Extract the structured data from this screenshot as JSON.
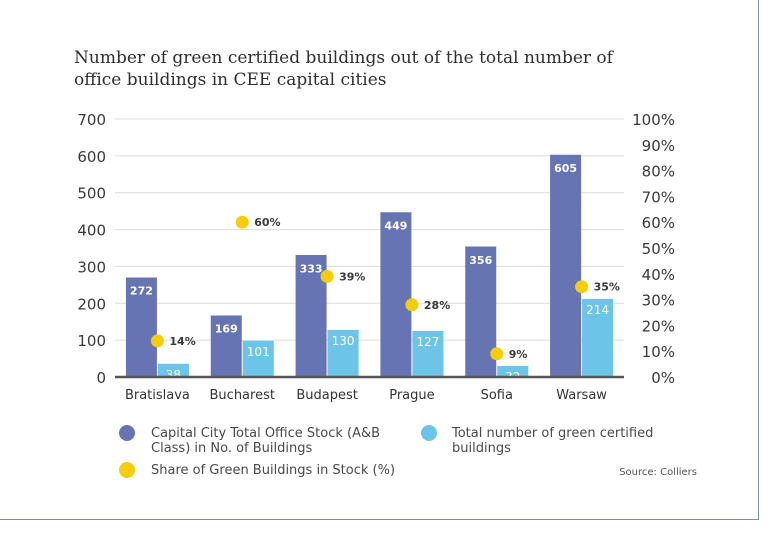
{
  "chart_data": {
    "type": "bar",
    "title": "Number of green certified buildings out of the total number of office buildings in CEE capital cities",
    "categories": [
      "Bratislava",
      "Bucharest",
      "Budapest",
      "Prague",
      "Sofia",
      "Warsaw"
    ],
    "series": [
      {
        "name": "Capital City Total Office Stock (A&B Class) in No. of Buildings",
        "values": [
          272,
          169,
          333,
          449,
          356,
          605
        ],
        "labels": [
          "272",
          "169",
          "333",
          "449",
          "356",
          "605"
        ],
        "color": "#6674b4",
        "axis": "left"
      },
      {
        "name": "Total number of green certified buildings",
        "values": [
          38,
          101,
          130,
          127,
          32,
          214
        ],
        "labels": [
          "38",
          "101",
          "130",
          "127",
          "32",
          "214"
        ],
        "color": "#6cc4e8",
        "axis": "left"
      },
      {
        "name": "Share of Green Buildings in Stock (%)",
        "values": [
          14,
          60,
          39,
          28,
          9,
          35
        ],
        "labels": [
          "14%",
          "60%",
          "39%",
          "28%",
          "9%",
          "35%"
        ],
        "color": "#f5cd0a",
        "axis": "right",
        "type": "scatter"
      }
    ],
    "y_left": {
      "min": 0,
      "max": 700,
      "ticks": [
        "0",
        "100",
        "200",
        "300",
        "400",
        "500",
        "600",
        "700"
      ]
    },
    "y_right": {
      "min": 0,
      "max": 100,
      "ticks": [
        "0%",
        "10%",
        "20%",
        "30%",
        "40%",
        "50%",
        "60%",
        "70%",
        "80%",
        "90%",
        "100%"
      ]
    },
    "grid": true,
    "legend_position": "bottom",
    "source": "Source: Colliers"
  }
}
